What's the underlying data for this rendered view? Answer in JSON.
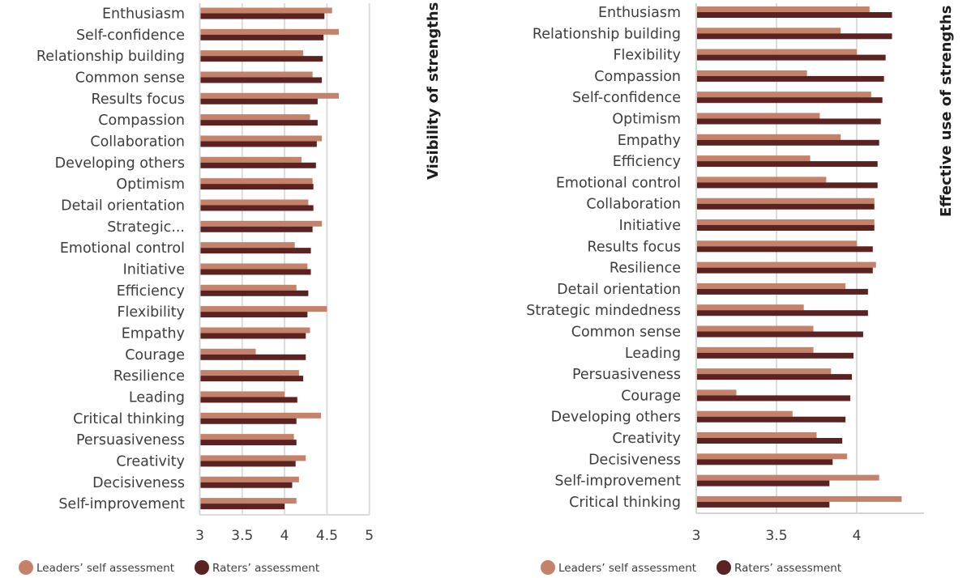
{
  "colors": {
    "self": "#C4826A",
    "raters": "#5A2220"
  },
  "legend": {
    "self_label": "Leaders’ self assessment",
    "raters_label": "Raters’ assessment"
  },
  "chart_data": [
    {
      "type": "bar",
      "orientation": "horizontal",
      "title": "Visibility of strengths",
      "title_placement": "right-vertical",
      "xlabel": "",
      "ylabel": "",
      "xlim": [
        3,
        5
      ],
      "xticks": [
        3,
        3.5,
        4,
        4.5,
        5
      ],
      "xtick_labels": [
        "3",
        "3.5",
        "4",
        "4.5",
        "5"
      ],
      "grid": true,
      "legend_placement": "bottom-left",
      "categories": [
        "Enthusiasm",
        "Self-confidence",
        "Relationship building",
        "Common sense",
        "Results focus",
        "Compassion",
        "Collaboration",
        "Developing others",
        "Optimism",
        "Detail orientation",
        "Strategic...",
        "Emotional control",
        "Initiative",
        "Efficiency",
        "Flexibility",
        "Empathy",
        "Courage",
        "Resilience",
        "Leading",
        "Critical thinking",
        "Persuasiveness",
        "Creativity",
        "Decisiveness",
        "Self-improvement"
      ],
      "series": [
        {
          "name": "Leaders’ self assessment",
          "values": [
            4.56,
            4.64,
            4.22,
            4.33,
            4.64,
            4.3,
            4.44,
            4.2,
            4.33,
            4.28,
            4.44,
            4.12,
            4.27,
            4.14,
            4.5,
            4.3,
            3.66,
            4.17,
            4.0,
            4.43,
            4.11,
            4.25,
            4.17,
            4.14
          ]
        },
        {
          "name": "Raters’ assessment",
          "values": [
            4.47,
            4.46,
            4.45,
            4.44,
            4.39,
            4.39,
            4.38,
            4.37,
            4.34,
            4.34,
            4.33,
            4.31,
            4.31,
            4.28,
            4.27,
            4.25,
            4.25,
            4.22,
            4.15,
            4.14,
            4.14,
            4.13,
            4.09,
            4.0
          ]
        }
      ]
    },
    {
      "type": "bar",
      "orientation": "horizontal",
      "title": "Effective use of strengths",
      "title_placement": "right-vertical",
      "xlabel": "",
      "ylabel": "",
      "xlim": [
        3,
        4.42
      ],
      "xticks": [
        3,
        3.5,
        4
      ],
      "xtick_labels": [
        "3",
        "3.5",
        "4"
      ],
      "grid": true,
      "legend_placement": "bottom-left",
      "categories": [
        "Enthusiasm",
        "Relationship building",
        "Flexibility",
        "Compassion",
        "Self-confidence",
        "Optimism",
        "Empathy",
        "Efficiency",
        "Emotional control",
        "Collaboration",
        "Initiative",
        "Results focus",
        "Resilience",
        "Detail orientation",
        "Strategic mindedness",
        "Common sense",
        "Leading",
        "Persuasiveness",
        "Courage",
        "Developing others",
        "Creativity",
        "Decisiveness",
        "Self-improvement",
        "Critical thinking"
      ],
      "series": [
        {
          "name": "Leaders’ self assessment",
          "values": [
            4.08,
            3.9,
            4.0,
            3.69,
            4.09,
            3.77,
            3.9,
            3.71,
            3.81,
            4.11,
            4.11,
            4.0,
            4.12,
            3.93,
            3.67,
            3.73,
            3.73,
            3.84,
            3.25,
            3.6,
            3.75,
            3.94,
            4.14,
            4.28
          ]
        },
        {
          "name": "Raters’ assessment",
          "values": [
            4.22,
            4.22,
            4.18,
            4.17,
            4.16,
            4.15,
            4.14,
            4.13,
            4.13,
            4.11,
            4.11,
            4.1,
            4.1,
            4.07,
            4.07,
            4.04,
            3.98,
            3.97,
            3.96,
            3.93,
            3.91,
            3.85,
            3.83,
            3.83
          ]
        }
      ]
    }
  ]
}
